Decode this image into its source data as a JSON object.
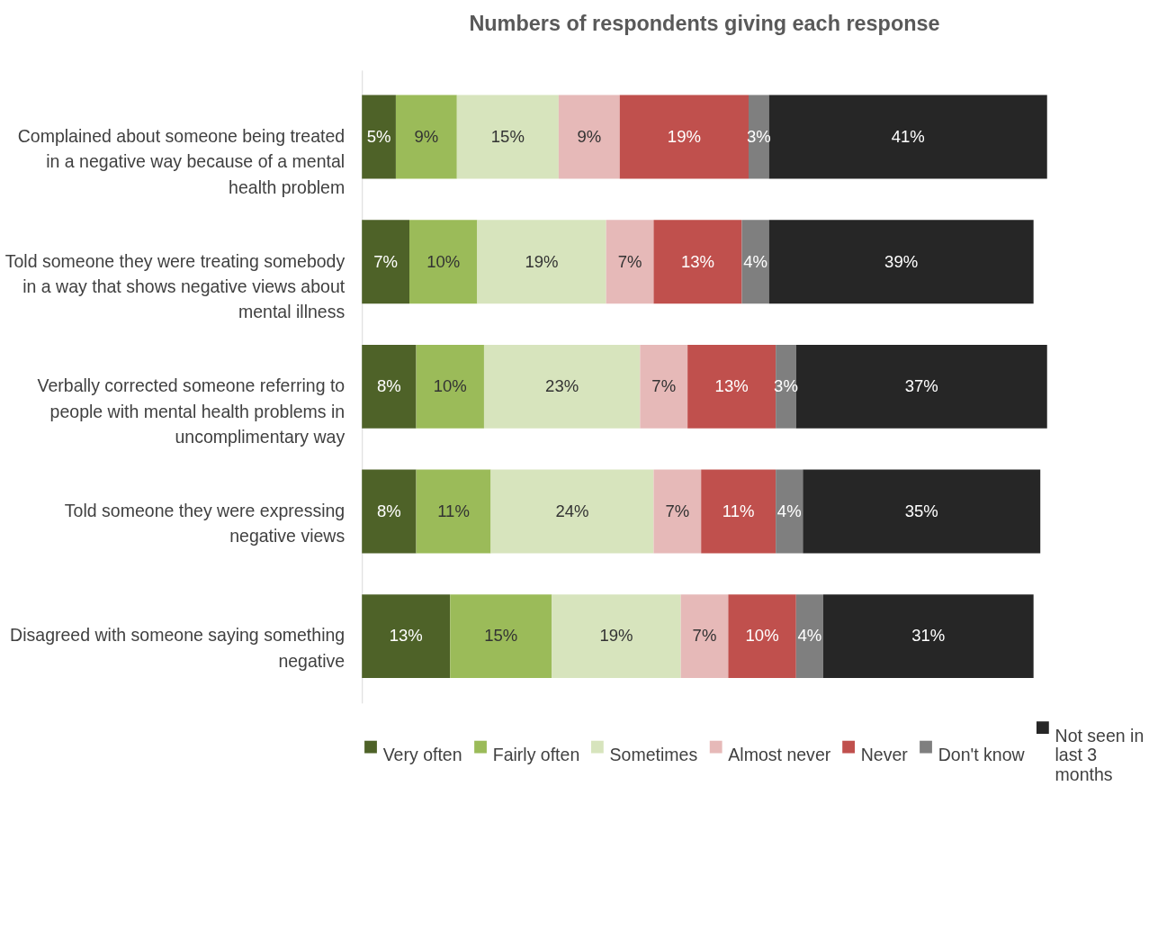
{
  "chart_data": {
    "type": "bar",
    "orientation": "horizontal",
    "stacked": true,
    "title": "Numbers of respondents  giving each response",
    "legend": "bottom",
    "tick_labels": "y",
    "categories": [
      "Complained about someone being treated in a negative way because of a mental health problem",
      "Told someone they were treating somebody in a way that shows negative views about mental illness",
      "Verbally corrected someone referring to people with mental health problems in uncomplimentary way",
      "Told someone they were expressing negative views",
      "Disagreed with someone saying something negative"
    ],
    "series": [
      {
        "name": "Very often",
        "color": "#4e6228",
        "values": [
          5,
          7,
          8,
          8,
          13
        ],
        "value_labels": [
          "5%",
          "7%",
          "8%",
          "8%",
          "13%"
        ]
      },
      {
        "name": "Fairly often",
        "color": "#9bbb59",
        "values": [
          9,
          10,
          10,
          11,
          15
        ],
        "value_labels": [
          "9%",
          "10%",
          "10%",
          "11%",
          "15%"
        ]
      },
      {
        "name": "Sometimes",
        "color": "#d7e4bd",
        "values": [
          15,
          19,
          23,
          24,
          19
        ],
        "value_labels": [
          "15%",
          "19%",
          "23%",
          "24%",
          "19%"
        ]
      },
      {
        "name": "Almost never",
        "color": "#e6b9b8",
        "values": [
          9,
          7,
          7,
          7,
          7
        ],
        "value_labels": [
          "9%",
          "7%",
          "7%",
          "7%",
          "7%"
        ]
      },
      {
        "name": "Never",
        "color": "#c0504d",
        "values": [
          19,
          13,
          13,
          11,
          10
        ],
        "value_labels": [
          "19%",
          "13%",
          "13%",
          "11%",
          "10%"
        ]
      },
      {
        "name": "Don't know",
        "color": "#7f7f7f",
        "values": [
          3,
          4,
          3,
          4,
          4
        ],
        "value_labels": [
          "3%",
          "4%",
          "3%",
          "4%",
          "4%"
        ]
      },
      {
        "name": "Not seen in last 3 months",
        "color": "#262626",
        "values": [
          41,
          39,
          37,
          35,
          31
        ],
        "value_labels": [
          "41%",
          "39%",
          "37%",
          "35%",
          "31%"
        ]
      }
    ]
  }
}
